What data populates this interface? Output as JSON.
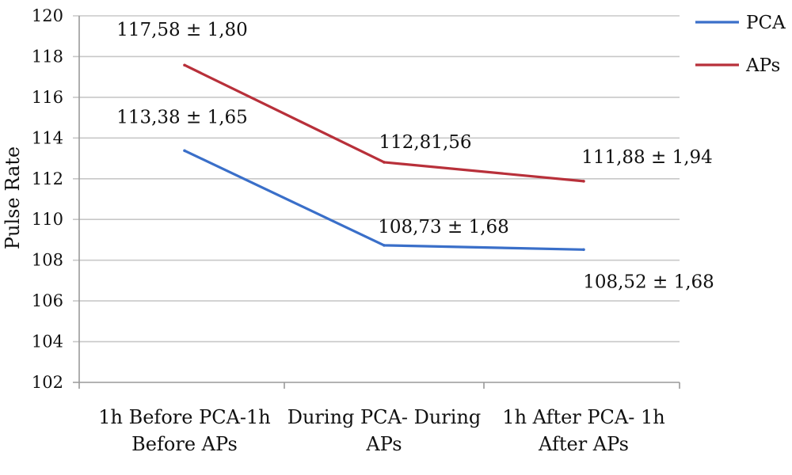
{
  "chart_data": {
    "type": "line",
    "ylabel": "Pulse Rate",
    "xlabel": "",
    "ylim": [
      102,
      120
    ],
    "y_ticks": [
      102,
      104,
      106,
      108,
      110,
      112,
      114,
      116,
      118,
      120
    ],
    "grid": true,
    "legend_position": "top-right",
    "categories": [
      [
        "1h Before PCA-1h",
        "Before APs"
      ],
      [
        "During PCA- During",
        "APs"
      ],
      [
        "1h After PCA- 1h",
        "After APs"
      ]
    ],
    "series": [
      {
        "name": "PCA",
        "color": "#3a6fc9",
        "values": [
          113.38,
          108.73,
          108.52
        ],
        "labels": [
          "113,38 ± 1,65",
          "108,73 ± 1,68",
          "108,52 ± 1,68"
        ]
      },
      {
        "name": "APs",
        "color": "#b8303a",
        "values": [
          117.58,
          112.81,
          111.88
        ],
        "labels": [
          "117,58 ± 1,80",
          "112,81,56",
          "111,88 ± 1,94"
        ]
      }
    ]
  }
}
